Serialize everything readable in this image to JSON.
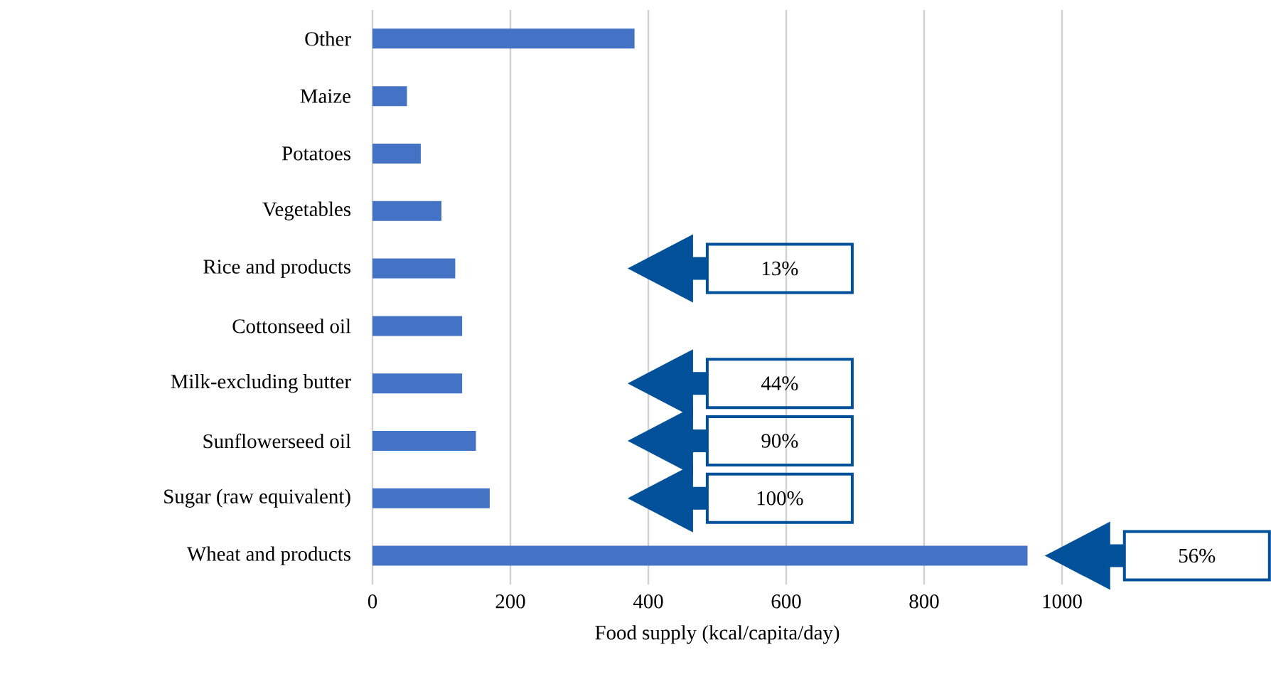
{
  "chart_data": {
    "type": "bar",
    "orientation": "horizontal",
    "xlabel": "Food supply (kcal/capita/day)",
    "categories": [
      "Other",
      "Maize",
      "Potatoes",
      "Vegetables",
      "Rice and products",
      "Cottonseed oil",
      "Milk-excluding butter",
      "Sunflowerseed oil",
      "Sugar (raw equivalent)",
      "Wheat and products"
    ],
    "values": [
      380,
      50,
      70,
      100,
      120,
      130,
      130,
      150,
      170,
      950
    ],
    "color": "#4472c4",
    "xlim": [
      0,
      1000
    ],
    "xticks": [
      0,
      200,
      400,
      600,
      800,
      1000
    ],
    "grid": "x",
    "annotations": [
      "13%",
      "44%",
      "90%",
      "100%",
      "56%"
    ]
  }
}
